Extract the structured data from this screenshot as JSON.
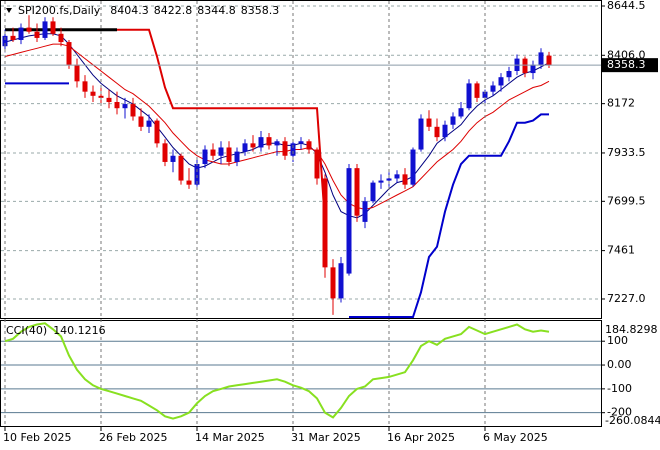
{
  "chart_data": [
    {
      "type": "candlestick",
      "title": "SPI200.fs,Daily",
      "open": [
        8450,
        8500,
        8480,
        8540,
        8520,
        8490,
        8570,
        8510,
        8470,
        8360,
        8280,
        8230,
        8210,
        8200,
        8180,
        8150,
        8170,
        8110,
        8060,
        8090,
        7980,
        7890,
        7920,
        7800,
        7780,
        7880,
        7950,
        7920,
        7960,
        7890,
        7940,
        7980,
        7960,
        8010,
        7970,
        7990,
        7920,
        7980,
        7990,
        7950,
        7810,
        7380,
        7230,
        7350,
        7860,
        7600,
        7700,
        7790,
        7800,
        7810,
        7830,
        7780,
        7950,
        8100,
        8060,
        8010,
        8070,
        8110,
        8150,
        8270,
        8200,
        8230,
        8260,
        8300,
        8330,
        8390,
        8320,
        8360,
        8404.3
      ],
      "high": [
        8530,
        8540,
        8560,
        8600,
        8560,
        8590,
        8590,
        8540,
        8480,
        8390,
        8310,
        8260,
        8250,
        8240,
        8230,
        8200,
        8200,
        8150,
        8120,
        8100,
        8000,
        7950,
        7930,
        7860,
        7900,
        7970,
        7980,
        7990,
        7990,
        7960,
        8000,
        8020,
        8040,
        8030,
        8000,
        8010,
        8000,
        8010,
        8000,
        7960,
        7830,
        7420,
        7430,
        7880,
        7880,
        7720,
        7800,
        7830,
        7840,
        7850,
        7860,
        7960,
        8120,
        8140,
        8100,
        8090,
        8130,
        8180,
        8290,
        8280,
        8240,
        8280,
        8320,
        8350,
        8410,
        8400,
        8380,
        8440,
        8422.8
      ],
      "low": [
        8420,
        8470,
        8460,
        8510,
        8470,
        8480,
        8500,
        8450,
        8340,
        8250,
        8200,
        8180,
        8170,
        8150,
        8120,
        8100,
        8090,
        8040,
        8030,
        7960,
        7870,
        7840,
        7780,
        7760,
        7770,
        7860,
        7900,
        7880,
        7870,
        7870,
        7920,
        7940,
        7940,
        7950,
        7920,
        7900,
        7890,
        7950,
        7930,
        7780,
        7330,
        7150,
        7210,
        7340,
        7600,
        7570,
        7690,
        7760,
        7770,
        7790,
        7760,
        7770,
        7940,
        8040,
        7990,
        7990,
        8050,
        8100,
        8140,
        8180,
        8160,
        8210,
        8230,
        8280,
        8310,
        8300,
        8290,
        8340,
        8344.8
      ],
      "close": [
        8500,
        8480,
        8540,
        8520,
        8490,
        8570,
        8510,
        8470,
        8360,
        8280,
        8230,
        8210,
        8200,
        8180,
        8150,
        8170,
        8110,
        8060,
        8090,
        7980,
        7890,
        7920,
        7800,
        7780,
        7880,
        7950,
        7920,
        7960,
        7890,
        7940,
        7980,
        7960,
        8010,
        7970,
        7990,
        7920,
        7980,
        7990,
        7950,
        7810,
        7380,
        7230,
        7400,
        7860,
        7630,
        7700,
        7790,
        7800,
        7810,
        7830,
        7780,
        7950,
        8100,
        8060,
        8010,
        8070,
        8110,
        8150,
        8270,
        8200,
        8230,
        8260,
        8300,
        8330,
        8390,
        8320,
        8360,
        8420,
        8358.3
      ],
      "up_color": "#1010d0",
      "down_color": "#e00000",
      "series": [
        {
          "color": "#000080",
          "width": 1,
          "values": [
            8470,
            8480,
            8490,
            8500,
            8505,
            8510,
            8510,
            8500,
            8460,
            8410,
            8360,
            8310,
            8270,
            8240,
            8210,
            8190,
            8170,
            8140,
            8110,
            8060,
            8010,
            7960,
            7920,
            7880,
            7860,
            7870,
            7890,
            7910,
            7920,
            7930,
            7940,
            7950,
            7970,
            7980,
            7980,
            7970,
            7970,
            7980,
            7970,
            7930,
            7840,
            7730,
            7650,
            7630,
            7620,
            7640,
            7680,
            7720,
            7760,
            7790,
            7800,
            7820,
            7870,
            7920,
            7980,
            8010,
            8040,
            8070,
            8120,
            8160,
            8190,
            8210,
            8240,
            8270,
            8300,
            8320,
            8330,
            8350,
            8370
          ]
        },
        {
          "color": "#dd0000",
          "width": 1,
          "values": [
            8400,
            8410,
            8420,
            8430,
            8440,
            8450,
            8460,
            8460,
            8450,
            8420,
            8390,
            8360,
            8330,
            8300,
            8270,
            8240,
            8220,
            8190,
            8160,
            8120,
            8080,
            8030,
            7990,
            7950,
            7920,
            7900,
            7890,
            7880,
            7880,
            7890,
            7900,
            7910,
            7920,
            7930,
            7940,
            7940,
            7950,
            7950,
            7960,
            7940,
            7880,
            7800,
            7730,
            7690,
            7670,
            7660,
            7670,
            7690,
            7710,
            7730,
            7750,
            7770,
            7810,
            7850,
            7890,
            7920,
            7950,
            7990,
            8040,
            8080,
            8110,
            8130,
            8160,
            8190,
            8210,
            8230,
            8250,
            8260,
            8280
          ]
        },
        {
          "color": "#dd0000",
          "width": 2,
          "values": [
            null,
            null,
            null,
            null,
            null,
            null,
            null,
            null,
            null,
            null,
            null,
            null,
            null,
            null,
            8530,
            8530,
            8530,
            8530,
            8530,
            8400,
            8250,
            8150,
            8150,
            8150,
            8150,
            8150,
            8150,
            8150,
            8150,
            8150,
            8150,
            8150,
            8150,
            8150,
            8150,
            8150,
            8150,
            8150,
            8150,
            8150,
            7600,
            null,
            null,
            null,
            null,
            null,
            null,
            null,
            null,
            null,
            null,
            null,
            null,
            null,
            null,
            null,
            null,
            null,
            null,
            null,
            null,
            null,
            null,
            null,
            null,
            null,
            null,
            null,
            null
          ]
        },
        {
          "color": "#000000",
          "width": 3,
          "values": [
            8530,
            8530,
            8530,
            8530,
            8530,
            8530,
            8530,
            8530,
            8530,
            8530,
            8530,
            8530,
            8530,
            8530,
            8530,
            null,
            null,
            null,
            null,
            null,
            null,
            null,
            null,
            null,
            null,
            null,
            null,
            null,
            null,
            null,
            null,
            null,
            null,
            null,
            null,
            null,
            null,
            null,
            null,
            null,
            null,
            null,
            null,
            null,
            null,
            null,
            null,
            null,
            null,
            null,
            null,
            null,
            null,
            null,
            null,
            null,
            null,
            null,
            null,
            null,
            null,
            null,
            null,
            null,
            null,
            null,
            null,
            null,
            null
          ]
        },
        {
          "color": "#0000cc",
          "width": 2,
          "values": [
            8270,
            8270,
            8270,
            8270,
            8270,
            8270,
            8270,
            8270,
            8270,
            null,
            null,
            null,
            null,
            null,
            null,
            null,
            null,
            null,
            null,
            null,
            null,
            null,
            null,
            null,
            null,
            null,
            null,
            null,
            null,
            null,
            null,
            null,
            null,
            null,
            null,
            null,
            null,
            null,
            null,
            null,
            null,
            null,
            null,
            7140,
            7140,
            7140,
            7140,
            7140,
            7140,
            7140,
            7140,
            7140,
            7260,
            7430,
            7480,
            7650,
            7780,
            7880,
            7920,
            7920,
            7920,
            7920,
            7920,
            7990,
            8080,
            8080,
            8090,
            8120,
            8120
          ]
        }
      ],
      "ylim": [
        7135,
        8673.5
      ],
      "yticks": [
        {
          "value": 7227,
          "label": "7227.0"
        },
        7461,
        7699.5,
        7933.5,
        8172,
        {
          "value": 8406,
          "label": "8406.0"
        },
        8644.5
      ],
      "grid": true
    },
    {
      "type": "line",
      "categories": [
        "10 Feb 2025",
        null,
        null,
        null,
        null,
        null,
        null,
        null,
        null,
        null,
        null,
        null,
        "26 Feb 2025",
        null,
        null,
        null,
        null,
        null,
        null,
        null,
        null,
        null,
        null,
        null,
        "14 Mar 2025",
        null,
        null,
        null,
        null,
        null,
        null,
        null,
        null,
        null,
        null,
        null,
        "31 Mar 2025",
        null,
        null,
        null,
        null,
        null,
        null,
        null,
        null,
        null,
        null,
        null,
        "16 Apr 2025",
        null,
        null,
        null,
        null,
        null,
        null,
        null,
        null,
        null,
        null,
        null,
        "6 May 2025",
        null,
        null,
        null,
        null,
        null,
        null,
        null,
        null
      ],
      "series": [
        {
          "name": "CCI(40)",
          "color": "#88e020",
          "values": [
            100,
            110,
            140,
            160,
            170,
            175,
            150,
            120,
            40,
            -20,
            -60,
            -85,
            -100,
            -110,
            -120,
            -130,
            -140,
            -150,
            -170,
            -190,
            -215,
            -225,
            -215,
            -200,
            -160,
            -130,
            -110,
            -100,
            -90,
            -85,
            -80,
            -75,
            -70,
            -65,
            -60,
            -70,
            -85,
            -95,
            -110,
            -140,
            -200,
            -220,
            -180,
            -130,
            -100,
            -90,
            -60,
            -55,
            -50,
            -40,
            -30,
            20,
            80,
            100,
            85,
            110,
            120,
            130,
            160,
            145,
            130,
            140,
            150,
            160,
            170,
            150,
            140,
            145,
            140.1216
          ]
        }
      ],
      "ylim": [
        -260.0844,
        184.8298
      ],
      "yticks": [
        100,
        {
          "value": 0,
          "label": "0.00"
        },
        -100,
        -200
      ],
      "grid": true
    }
  ]
}
